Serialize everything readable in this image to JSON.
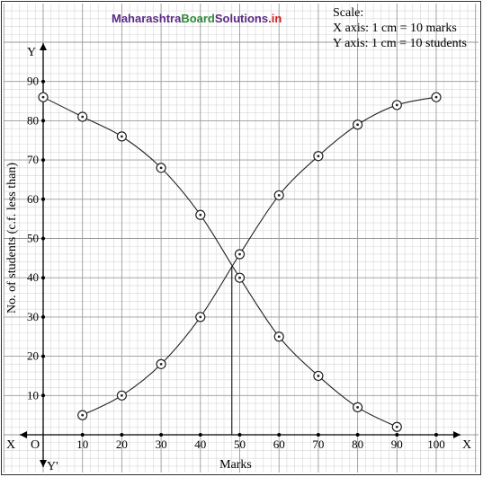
{
  "watermark": {
    "part1": "Maharashtra",
    "part2": "Board",
    "part3": "Solutions",
    "part4": ".in",
    "colors": {
      "purple": "#5b2a86",
      "green": "#2e8b3a",
      "red": "#d32020"
    }
  },
  "scale": {
    "title": "Scale:",
    "x_line": "X axis: 1 cm = 10 marks",
    "y_line": "Y axis: 1 cm = 10 students"
  },
  "axes": {
    "x_left": "X",
    "x_right": "X",
    "origin": "O",
    "y_top": "Y",
    "y_bottom": "Y'"
  },
  "chart_data": {
    "type": "line",
    "title": "",
    "xlabel": "Marks",
    "ylabel": "No. of students (c.f. less than)",
    "xlim": [
      0,
      100
    ],
    "ylim": [
      0,
      95
    ],
    "grid": true,
    "x_ticks": [
      10,
      20,
      30,
      40,
      50,
      60,
      70,
      80,
      90,
      100
    ],
    "y_ticks": [
      10,
      20,
      30,
      40,
      50,
      60,
      70,
      80,
      90
    ],
    "series": [
      {
        "x": [
          10,
          20,
          30,
          40,
          50,
          60,
          70,
          80,
          90,
          100
        ],
        "y": [
          5,
          10,
          18,
          30,
          46,
          61,
          71,
          79,
          84,
          86
        ]
      },
      {
        "x": [
          0,
          10,
          20,
          30,
          40,
          50,
          60,
          70,
          80,
          90
        ],
        "y": [
          86,
          81,
          76,
          68,
          56,
          40,
          25,
          15,
          7,
          2
        ]
      }
    ],
    "intersection": {
      "x": 48,
      "y": 43
    }
  }
}
